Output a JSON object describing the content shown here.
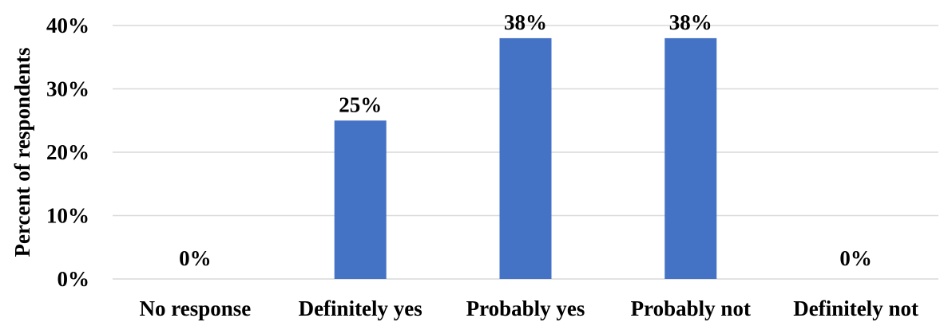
{
  "chart_data": {
    "type": "bar",
    "title": "",
    "xlabel": "",
    "ylabel": "Percent of respondents",
    "categories": [
      "No response",
      "Definitely yes",
      "Probably yes",
      "Probably not",
      "Definitely not"
    ],
    "values": [
      0,
      25,
      38,
      38,
      0
    ],
    "data_labels": [
      "0%",
      "25%",
      "38%",
      "38%",
      "0%"
    ],
    "ylim": [
      0,
      40
    ],
    "yticks": [
      0,
      10,
      20,
      30,
      40
    ],
    "ytick_labels": [
      "0%",
      "10%",
      "20%",
      "30%",
      "40%"
    ],
    "grid": true,
    "legend": "none",
    "bar_color": "#4472C4",
    "grid_color": "#d9d9d9"
  }
}
